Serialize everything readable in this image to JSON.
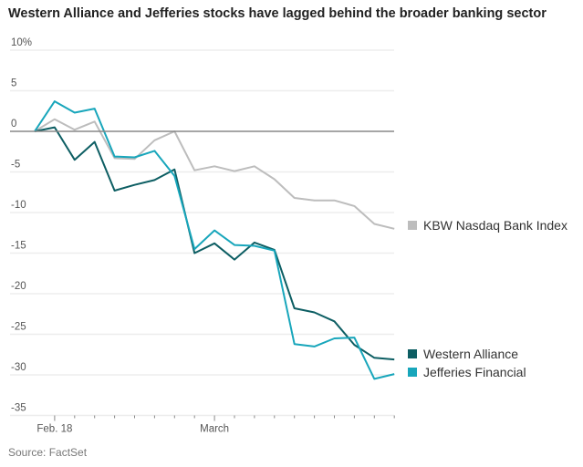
{
  "chart_data": {
    "type": "line",
    "title": "Western Alliance and Jefferies stocks have lagged behind the broader banking sector",
    "source": "Source: FactSet",
    "xlabel": "",
    "ylabel": "",
    "ylim": [
      -35,
      10
    ],
    "y_ticks": [
      10,
      5,
      0,
      -5,
      -10,
      -15,
      -20,
      -25,
      -30,
      -35
    ],
    "y_tick_labels": [
      "10%",
      "5",
      "0",
      "-5",
      "-10",
      "-15",
      "-20",
      "-25",
      "-30",
      "-35"
    ],
    "x_tick_labels": [
      {
        "index": 1,
        "label": "Feb. 18"
      },
      {
        "index": 9,
        "label": "March"
      }
    ],
    "x": [
      0,
      1,
      2,
      3,
      4,
      5,
      6,
      7,
      8,
      9,
      10,
      11,
      12,
      13,
      14,
      15,
      16,
      17,
      18
    ],
    "grid": true,
    "legend_placement": "right",
    "series": [
      {
        "name": "KBW Nasdaq Bank Index",
        "color": "#bdbdbd",
        "values": [
          0,
          1.5,
          0.2,
          1.2,
          -3.3,
          -3.4,
          -1.1,
          0,
          -4.8,
          -4.3,
          -4.9,
          -4.3,
          -5.9,
          -8.2,
          -8.5,
          -8.5,
          -9.2,
          -11.4,
          -12.0
        ]
      },
      {
        "name": "Western Alliance",
        "color": "#0d5e63",
        "values": [
          0,
          0.5,
          -3.5,
          -1.3,
          -7.3,
          -6.6,
          -6.0,
          -4.7,
          -15.0,
          -13.8,
          -15.8,
          -13.7,
          -14.6,
          -21.8,
          -22.3,
          -23.4,
          -26.3,
          -27.9,
          -28.1
        ]
      },
      {
        "name": "Jefferies Financial",
        "color": "#18a6bb",
        "values": [
          0,
          3.7,
          2.3,
          2.8,
          -3.1,
          -3.2,
          -2.4,
          -5.5,
          -14.5,
          -12.2,
          -14.0,
          -14.1,
          -14.7,
          -26.2,
          -26.5,
          -25.5,
          -25.4,
          -30.5,
          -29.9
        ]
      }
    ]
  }
}
